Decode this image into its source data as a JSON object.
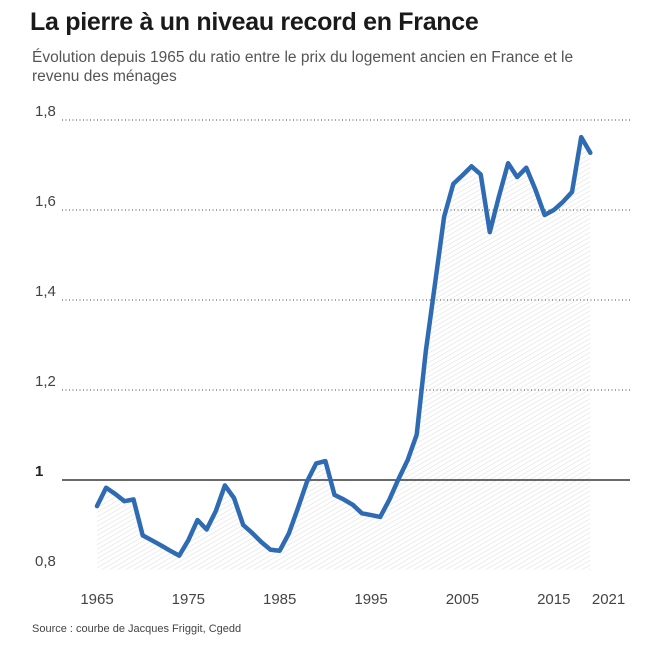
{
  "header": {
    "title": "La pierre à un niveau record en France",
    "subtitle": "Évolution depuis 1965 du ratio entre le prix du logement ancien en France et le revenu des ménages"
  },
  "footer": {
    "source": "Source : courbe de Jacques Friggit, Cgedd"
  },
  "colors": {
    "line": "#2f6bb3",
    "area": "#e9e9e9",
    "grid": "#444444",
    "baseline": "#111111"
  },
  "chart_data": {
    "type": "area",
    "title": "La pierre à un niveau record en France",
    "subtitle": "Évolution depuis 1965 du ratio entre le prix du logement ancien en France et le revenu des ménages",
    "xlabel": "",
    "ylabel": "",
    "xlim": [
      1963,
      2021
    ],
    "ylim": [
      0.8,
      1.8
    ],
    "y_ticks": [
      {
        "value": 0.8,
        "label": "0,8"
      },
      {
        "value": 1.0,
        "label": "1"
      },
      {
        "value": 1.2,
        "label": "1,2"
      },
      {
        "value": 1.4,
        "label": "1,4"
      },
      {
        "value": 1.6,
        "label": "1,6"
      },
      {
        "value": 1.8,
        "label": "1,8"
      }
    ],
    "x_ticks": [
      {
        "value": 1965,
        "label": "1965"
      },
      {
        "value": 1975,
        "label": "1975"
      },
      {
        "value": 1985,
        "label": "1985"
      },
      {
        "value": 1995,
        "label": "1995"
      },
      {
        "value": 2005,
        "label": "2005"
      },
      {
        "value": 2015,
        "label": "2015"
      },
      {
        "value": 2021,
        "label": "2021"
      }
    ],
    "baseline": 1.0,
    "grid": "dotted horizontal",
    "series": [
      {
        "x": [
          1965,
          1966,
          1967,
          1968,
          1969,
          1970,
          1971,
          1972,
          1973,
          1974,
          1975,
          1976,
          1977,
          1978,
          1979,
          1980,
          1981,
          1982,
          1983,
          1984,
          1985,
          1986,
          1987,
          1988,
          1989,
          1990,
          1991,
          1992,
          1993,
          1994,
          1995,
          1996,
          1997,
          1998,
          1999,
          2000,
          2001,
          2002,
          2003,
          2004,
          2005,
          2006,
          2007,
          2008,
          2009,
          2010,
          2011,
          2012,
          2013,
          2014,
          2015,
          2016,
          2017,
          2018,
          2019
        ],
        "values": [
          0.942,
          0.983,
          0.969,
          0.953,
          0.957,
          0.877,
          0.866,
          0.855,
          0.843,
          0.832,
          0.866,
          0.911,
          0.89,
          0.931,
          0.988,
          0.96,
          0.9,
          0.882,
          0.862,
          0.845,
          0.843,
          0.881,
          0.938,
          0.997,
          1.037,
          1.042,
          0.967,
          0.957,
          0.945,
          0.926,
          0.922,
          0.918,
          0.956,
          1.002,
          1.044,
          1.101,
          1.288,
          1.436,
          1.585,
          1.658,
          1.677,
          1.697,
          1.679,
          1.551,
          1.63,
          1.704,
          1.673,
          1.694,
          1.645,
          1.589,
          1.6,
          1.618,
          1.64,
          1.762,
          1.727
        ]
      }
    ]
  }
}
